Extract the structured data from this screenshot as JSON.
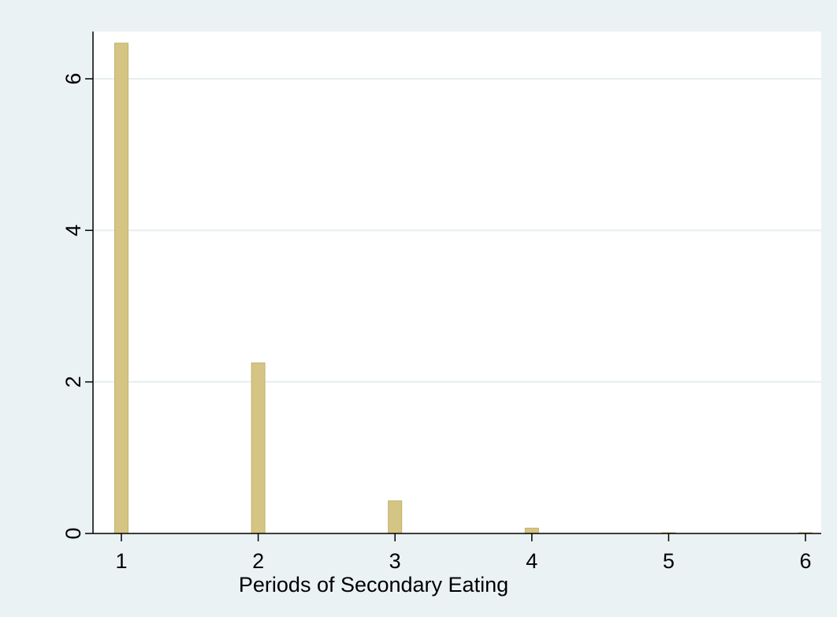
{
  "chart_data": {
    "type": "bar",
    "xlabel": "Periods of Secondary Eating",
    "ylabel": "",
    "title": "",
    "categories": [
      "1",
      "2",
      "3",
      "4",
      "5",
      "6"
    ],
    "x": [
      1,
      2,
      3,
      4,
      5,
      6
    ],
    "values": [
      6.47,
      2.25,
      0.43,
      0.07,
      0.01,
      0.01
    ],
    "xlim": [
      0.85,
      6.1
    ],
    "ylim": [
      0,
      6.6
    ],
    "xticks": [
      "1",
      "2",
      "3",
      "4",
      "5",
      "6"
    ],
    "yticks": [
      "0",
      "2",
      "4",
      "6"
    ],
    "ytick_values": [
      0,
      2,
      4,
      6
    ],
    "grid": "horizontal",
    "legend": "none"
  },
  "colors": {
    "background": "#eaf2f3",
    "plot_area": "#ffffff",
    "bar_fill": "#d5c584",
    "bar_stroke": "#c2b06a",
    "gridline": "#e6eef0",
    "axis": "#000000"
  }
}
